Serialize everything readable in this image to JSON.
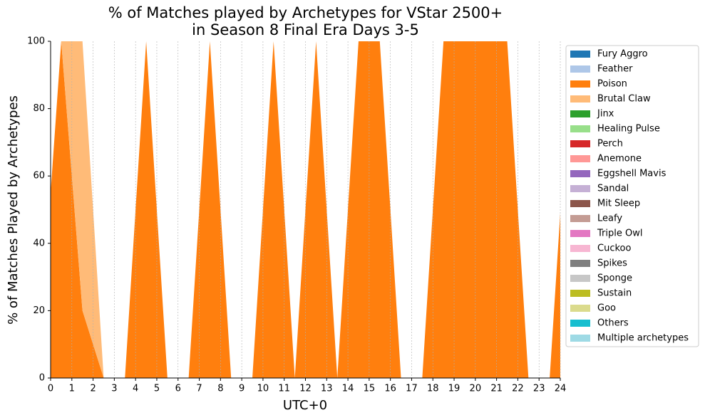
{
  "chart_data": {
    "type": "stacked_area",
    "title": "% of Matches played by Archetypes for VStar 2500+\nin Season 8 Final Era Days 3-5",
    "x_label": "UTC+0",
    "y_label": "% of Matches Played by Archetypes",
    "x": [
      0,
      0.5,
      1.5,
      2.5,
      3.5,
      4.5,
      5.5,
      6.5,
      7.5,
      8.5,
      9.5,
      10.5,
      11.5,
      12.5,
      13.5,
      14.5,
      15.5,
      16.5,
      17.5,
      18.5,
      19.5,
      20.5,
      21.5,
      22.5,
      23.5,
      24
    ],
    "xlim": [
      0,
      24
    ],
    "xticks": [
      0,
      1,
      2,
      3,
      4,
      5,
      6,
      7,
      8,
      9,
      10,
      11,
      12,
      13,
      14,
      15,
      16,
      17,
      18,
      19,
      20,
      21,
      22,
      23,
      24
    ],
    "ylim": [
      0,
      100
    ],
    "yticks": [
      0,
      20,
      40,
      60,
      80,
      100
    ],
    "grid": "x",
    "series": [
      {
        "name": "Fury Aggro",
        "color": "#1f77b4",
        "values": [
          0,
          0,
          0,
          0,
          0,
          0,
          0,
          0,
          0,
          0,
          0,
          0,
          0,
          0,
          0,
          0,
          0,
          0,
          0,
          0,
          0,
          0,
          0,
          0,
          0,
          0
        ]
      },
      {
        "name": "Feather",
        "color": "#aec7e8",
        "values": [
          0,
          0,
          0,
          0,
          0,
          0,
          0,
          0,
          0,
          0,
          0,
          0,
          0,
          0,
          0,
          0,
          0,
          0,
          0,
          0,
          0,
          0,
          0,
          0,
          0,
          0
        ]
      },
      {
        "name": "Poison",
        "color": "#ff7f0e",
        "values": [
          55,
          100,
          20,
          0,
          0,
          100,
          0,
          0,
          100,
          0,
          0,
          100,
          0,
          100,
          0,
          100,
          100,
          0,
          0,
          100,
          100,
          100,
          100,
          0,
          0,
          49
        ]
      },
      {
        "name": "Brutal Claw",
        "color": "#ffbb78",
        "values": [
          0,
          0,
          80,
          0,
          0,
          0,
          0,
          0,
          0,
          0,
          0,
          0,
          0,
          0,
          0,
          0,
          0,
          0,
          0,
          0,
          0,
          0,
          0,
          0,
          0,
          0
        ]
      },
      {
        "name": "Jinx",
        "color": "#2ca02c",
        "values": [
          0,
          0,
          0,
          0,
          0,
          0,
          0,
          0,
          0,
          0,
          0,
          0,
          0,
          0,
          0,
          0,
          0,
          0,
          0,
          0,
          0,
          0,
          0,
          0,
          0,
          0
        ]
      },
      {
        "name": "Healing Pulse",
        "color": "#98df8a",
        "values": [
          0,
          0,
          0,
          0,
          0,
          0,
          0,
          0,
          0,
          0,
          0,
          0,
          0,
          0,
          0,
          0,
          0,
          0,
          0,
          0,
          0,
          0,
          0,
          0,
          0,
          0
        ]
      },
      {
        "name": "Perch",
        "color": "#d62728",
        "values": [
          0,
          0,
          0,
          0,
          0,
          0,
          0,
          0,
          0,
          0,
          0,
          0,
          0,
          0,
          0,
          0,
          0,
          0,
          0,
          0,
          0,
          0,
          0,
          0,
          0,
          0
        ]
      },
      {
        "name": "Anemone",
        "color": "#ff9896",
        "values": [
          0,
          0,
          0,
          0,
          0,
          0,
          0,
          0,
          0,
          0,
          0,
          0,
          0,
          0,
          0,
          0,
          0,
          0,
          0,
          0,
          0,
          0,
          0,
          0,
          0,
          0
        ]
      },
      {
        "name": "Eggshell Mavis",
        "color": "#9467bd",
        "values": [
          0,
          0,
          0,
          0,
          0,
          0,
          0,
          0,
          0,
          0,
          0,
          0,
          0,
          0,
          0,
          0,
          0,
          0,
          0,
          0,
          0,
          0,
          0,
          0,
          0,
          0
        ]
      },
      {
        "name": "Sandal",
        "color": "#c5b0d5",
        "values": [
          0,
          0,
          0,
          0,
          0,
          0,
          0,
          0,
          0,
          0,
          0,
          0,
          0,
          0,
          0,
          0,
          0,
          0,
          0,
          0,
          0,
          0,
          0,
          0,
          0,
          0
        ]
      },
      {
        "name": "Mit Sleep",
        "color": "#8c564b",
        "values": [
          0,
          0,
          0,
          0,
          0,
          0,
          0,
          0,
          0,
          0,
          0,
          0,
          0,
          0,
          0,
          0,
          0,
          0,
          0,
          0,
          0,
          0,
          0,
          0,
          0,
          0
        ]
      },
      {
        "name": "Leafy",
        "color": "#c49c94",
        "values": [
          0,
          0,
          0,
          0,
          0,
          0,
          0,
          0,
          0,
          0,
          0,
          0,
          0,
          0,
          0,
          0,
          0,
          0,
          0,
          0,
          0,
          0,
          0,
          0,
          0,
          0
        ]
      },
      {
        "name": "Triple Owl",
        "color": "#e377c2",
        "values": [
          0,
          0,
          0,
          0,
          0,
          0,
          0,
          0,
          0,
          0,
          0,
          0,
          0,
          0,
          0,
          0,
          0,
          0,
          0,
          0,
          0,
          0,
          0,
          0,
          0,
          0
        ]
      },
      {
        "name": "Cuckoo",
        "color": "#f7b6d2",
        "values": [
          0,
          0,
          0,
          0,
          0,
          0,
          0,
          0,
          0,
          0,
          0,
          0,
          0,
          0,
          0,
          0,
          0,
          0,
          0,
          0,
          0,
          0,
          0,
          0,
          0,
          0
        ]
      },
      {
        "name": "Spikes",
        "color": "#7f7f7f",
        "values": [
          0,
          0,
          0,
          0,
          0,
          0,
          0,
          0,
          0,
          0,
          0,
          0,
          0,
          0,
          0,
          0,
          0,
          0,
          0,
          0,
          0,
          0,
          0,
          0,
          0,
          0
        ]
      },
      {
        "name": "Sponge",
        "color": "#c7c7c7",
        "values": [
          0,
          0,
          0,
          0,
          0,
          0,
          0,
          0,
          0,
          0,
          0,
          0,
          0,
          0,
          0,
          0,
          0,
          0,
          0,
          0,
          0,
          0,
          0,
          0,
          0,
          0
        ]
      },
      {
        "name": "Sustain",
        "color": "#bcbd22",
        "values": [
          0,
          0,
          0,
          0,
          0,
          0,
          0,
          0,
          0,
          0,
          0,
          0,
          0,
          0,
          0,
          0,
          0,
          0,
          0,
          0,
          0,
          0,
          0,
          0,
          0,
          0
        ]
      },
      {
        "name": "Goo",
        "color": "#dbdb8d",
        "values": [
          0,
          0,
          0,
          0,
          0,
          0,
          0,
          0,
          0,
          0,
          0,
          0,
          0,
          0,
          0,
          0,
          0,
          0,
          0,
          0,
          0,
          0,
          0,
          0,
          0,
          0
        ]
      },
      {
        "name": "Others",
        "color": "#17becf",
        "values": [
          0,
          0,
          0,
          0,
          0,
          0,
          0,
          0,
          0,
          0,
          0,
          0,
          0,
          0,
          0,
          0,
          0,
          0,
          0,
          0,
          0,
          0,
          0,
          0,
          0,
          0
        ]
      },
      {
        "name": "Multiple archetypes",
        "color": "#9edae5",
        "values": [
          0,
          0,
          0,
          0,
          0,
          0,
          0,
          0,
          0,
          0,
          0,
          0,
          0,
          0,
          0,
          0,
          0,
          0,
          0,
          0,
          0,
          0,
          0,
          0,
          0,
          0
        ]
      }
    ]
  }
}
